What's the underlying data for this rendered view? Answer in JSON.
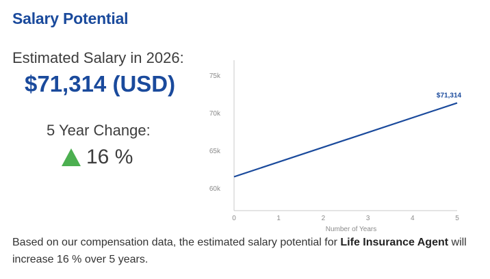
{
  "title": "Salary Potential",
  "estimate": {
    "label": "Estimated Salary in 2026:",
    "value": "$71,314 (USD)"
  },
  "change": {
    "label": "5 Year Change:",
    "icon": "up-triangle-icon",
    "icon_color": "#4caf50",
    "value": "16 %"
  },
  "description": {
    "prefix": "Based on our compensation data, the estimated salary potential for ",
    "job": "Life Insurance Agent",
    "suffix": " will increase 16 % over 5 years."
  },
  "colors": {
    "accent": "#1a4a9c",
    "up": "#4caf50"
  },
  "chart_data": {
    "type": "line",
    "x": [
      0,
      5
    ],
    "series": [
      {
        "values": [
          61500,
          71314
        ],
        "color": "#1a4a9c"
      }
    ],
    "xlim": [
      0,
      5
    ],
    "ylim": [
      57000,
      77000
    ],
    "xticks": [
      0,
      1,
      2,
      3,
      4,
      5
    ],
    "yticks": [
      60000,
      65000,
      70000,
      75000
    ],
    "ytick_labels": [
      "60k",
      "65k",
      "70k",
      "75k"
    ],
    "xlabel": "Number of Years",
    "ylabel": "",
    "data_label": "$71,314",
    "grid": false
  }
}
